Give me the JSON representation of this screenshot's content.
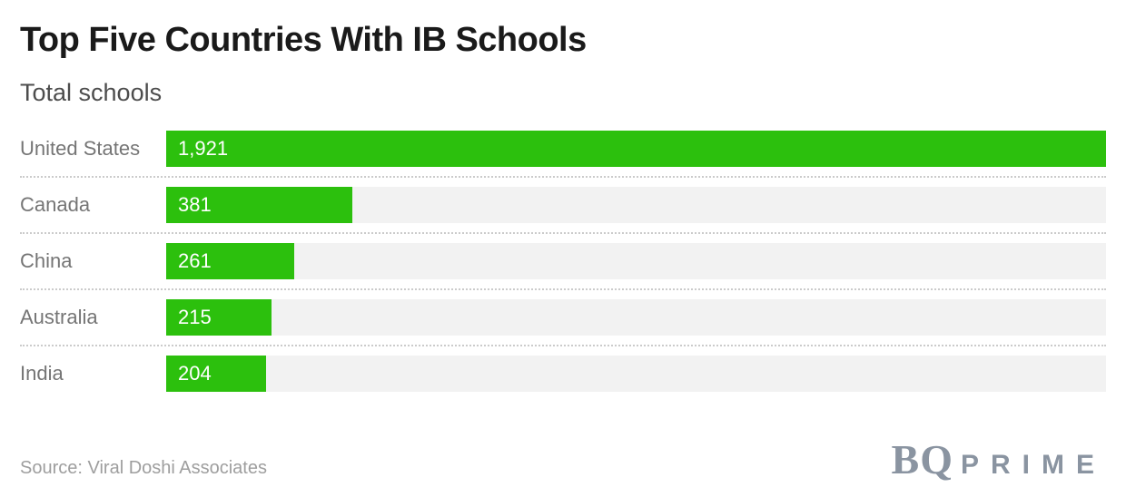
{
  "chart_data": {
    "type": "bar",
    "orientation": "horizontal",
    "title": "Top Five Countries With IB Schools",
    "subtitle": "Total schools",
    "categories": [
      "United States",
      "Canada",
      "China",
      "Australia",
      "India"
    ],
    "values": [
      1921,
      381,
      261,
      215,
      204
    ],
    "display_values": [
      "1,921",
      "381",
      "261",
      "215",
      "204"
    ],
    "xlim": [
      0,
      1921
    ],
    "bar_color": "#2cc00d",
    "track_color": "#f2f2f2",
    "value_label_position": "inside-left",
    "grid": false,
    "legend": false
  },
  "footer": {
    "source": "Source: Viral Doshi Associates",
    "logo": {
      "serif_part": "BQ",
      "sans_part": "PRIME",
      "color": "#8a94a1"
    }
  }
}
